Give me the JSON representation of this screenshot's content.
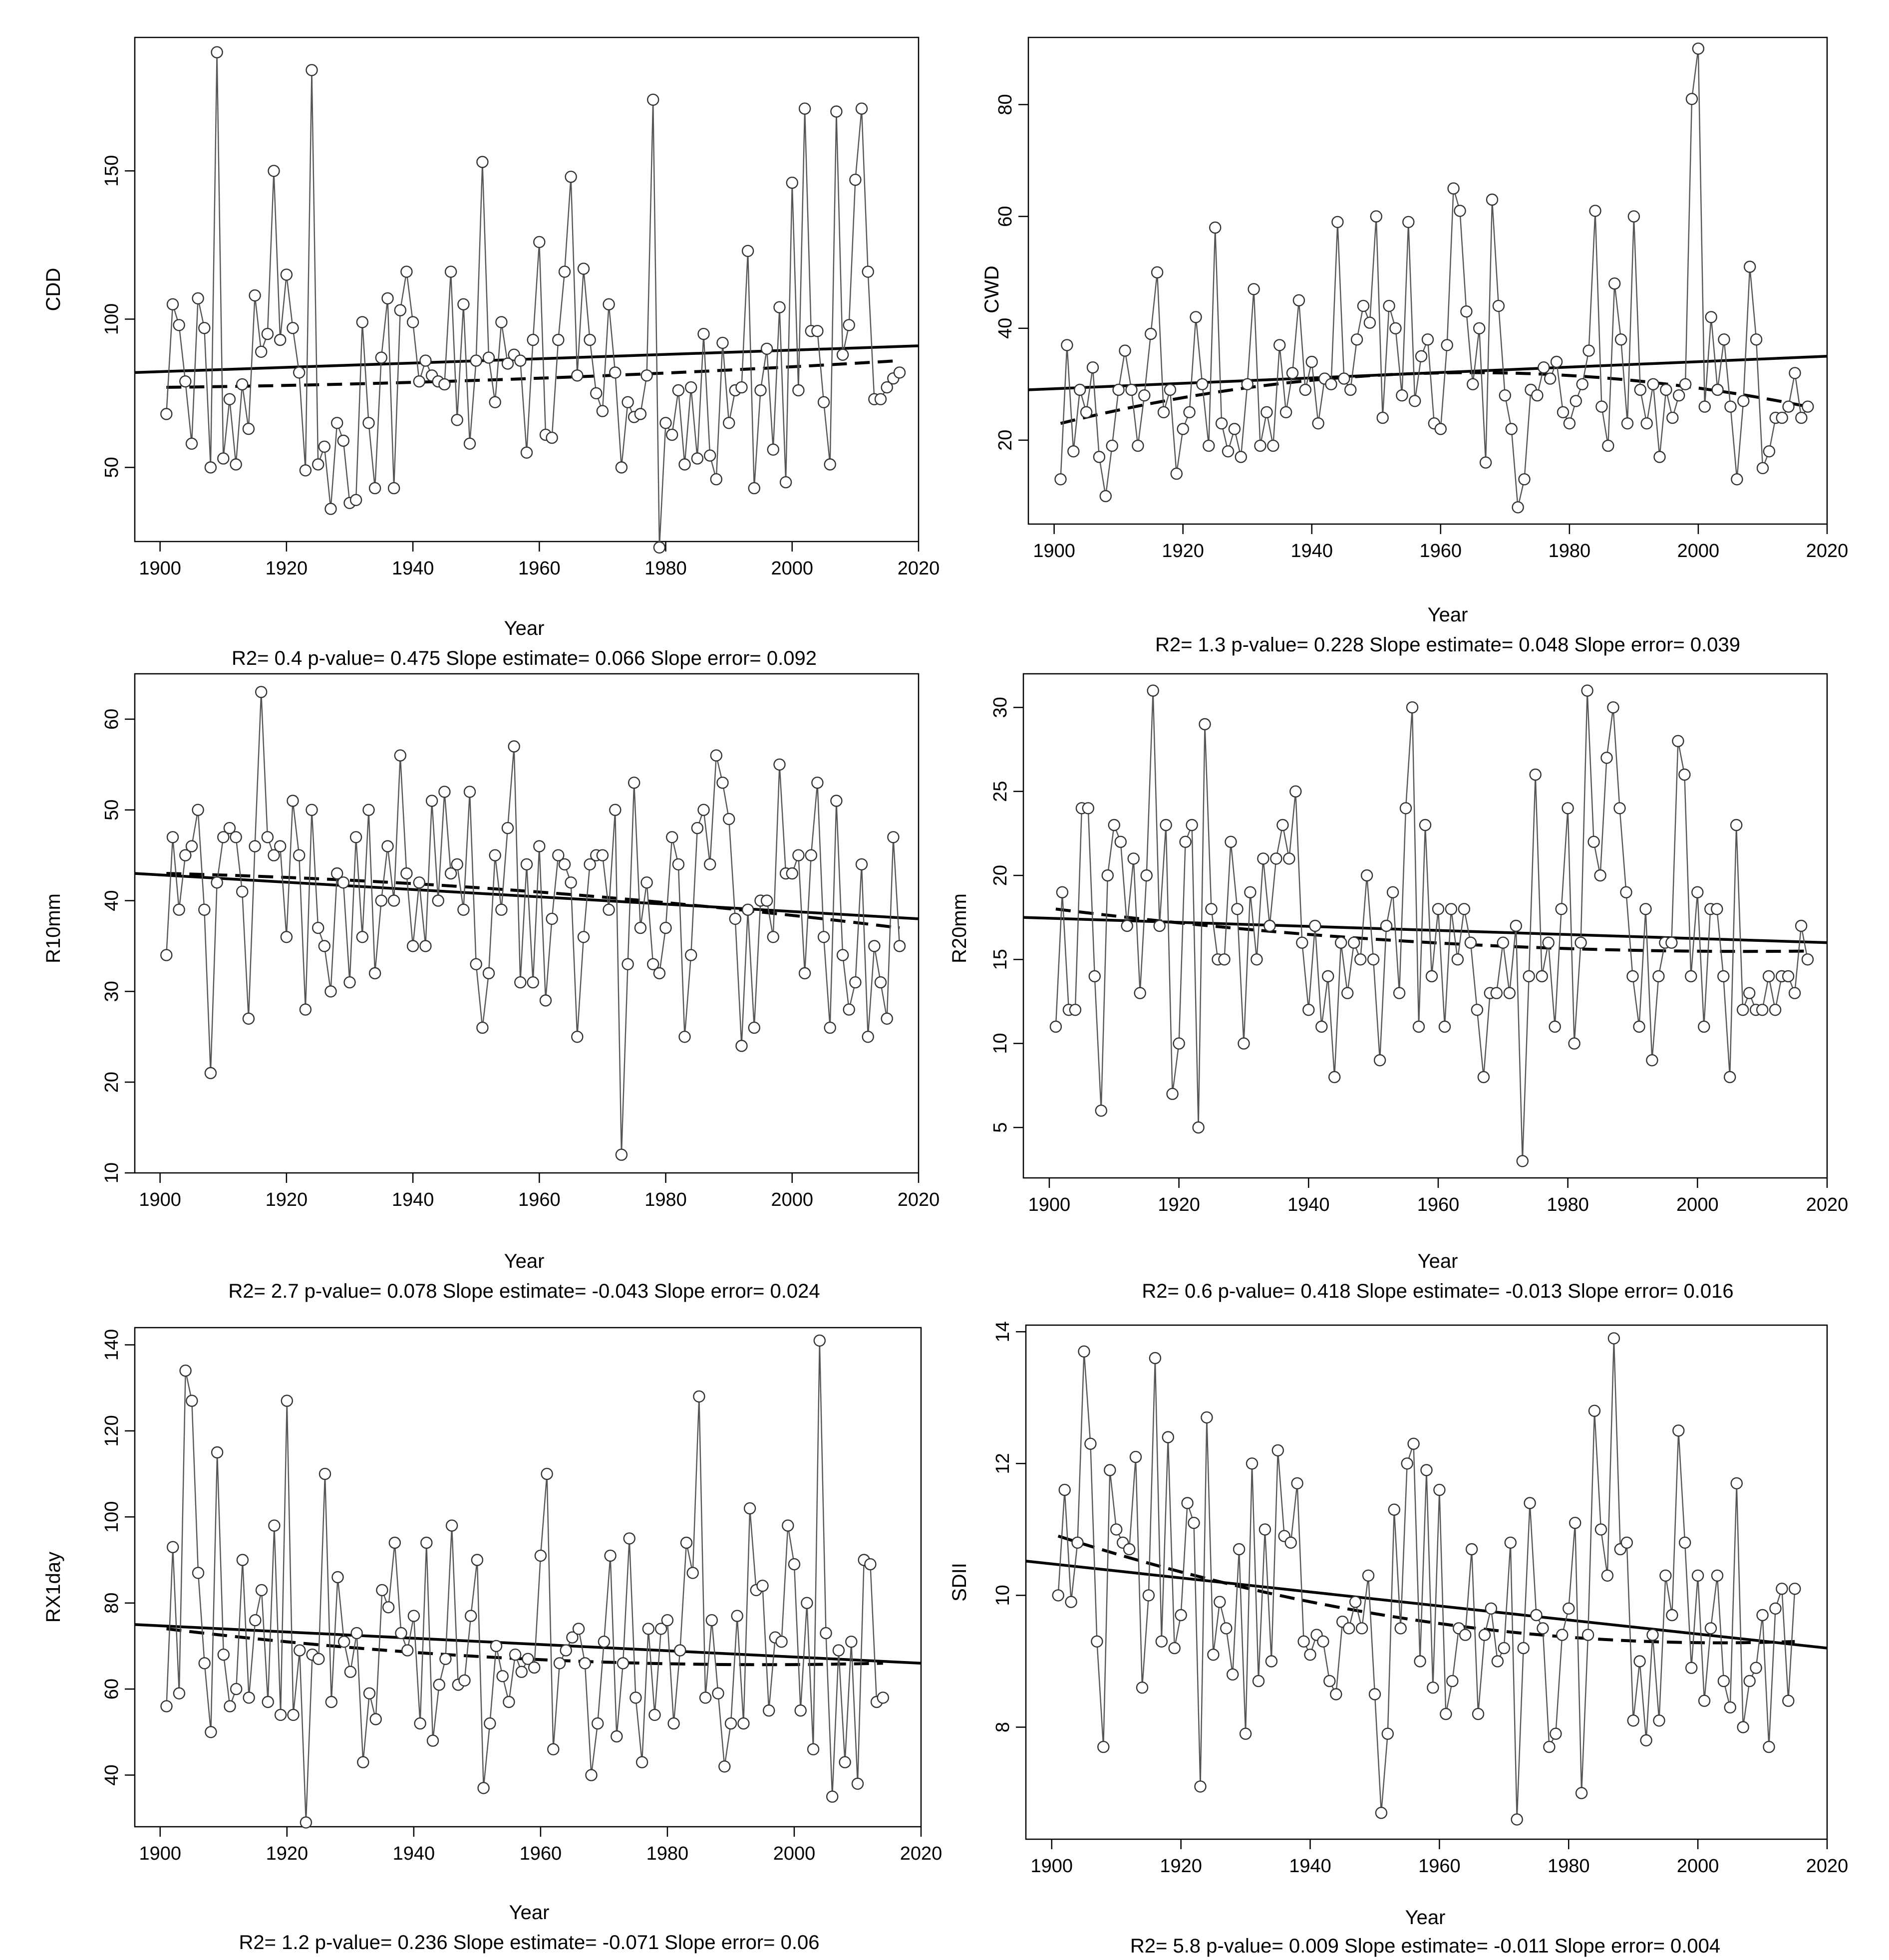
{
  "figure": {
    "background": "#ffffff",
    "line_color": "#000000",
    "series_line_color": "#555555",
    "point_color": "#333333"
  },
  "chart_data": [
    {
      "type": "line",
      "ylabel": "CDD",
      "xlabel": "Year",
      "xlim": [
        1896,
        2020
      ],
      "ylim": [
        25,
        195
      ],
      "xticks": [
        1900,
        1920,
        1940,
        1960,
        1980,
        2000,
        2020
      ],
      "yticks": [
        50,
        100,
        150
      ],
      "x_start": 1901,
      "values": [
        68,
        105,
        98,
        79,
        58,
        107,
        97,
        50,
        190,
        53,
        73,
        51,
        78,
        63,
        108,
        89,
        95,
        150,
        93,
        115,
        97,
        82,
        49,
        184,
        51,
        57,
        36,
        65,
        59,
        38,
        39,
        99,
        65,
        43,
        87,
        107,
        43,
        103,
        116,
        99,
        79,
        86,
        81,
        79,
        78,
        116,
        66,
        105,
        58,
        86,
        153,
        87,
        72,
        99,
        85,
        88,
        86,
        55,
        93,
        126,
        61,
        60,
        93,
        116,
        148,
        81,
        117,
        93,
        75,
        69,
        105,
        82,
        50,
        72,
        67,
        68,
        81,
        174,
        23,
        65,
        61,
        76,
        51,
        77,
        53,
        95,
        54,
        46,
        92,
        65,
        76,
        77,
        123,
        43,
        76,
        90,
        56,
        104,
        45,
        146,
        76,
        171,
        96,
        96,
        72,
        51,
        170,
        88,
        98,
        147,
        171,
        116,
        73,
        73,
        77,
        80,
        82
      ],
      "trend_start": 82,
      "trend_end": 91,
      "lowess_start": 77,
      "lowess_mid": 80,
      "lowess_end": 86,
      "stats": {
        "r2": "0.4",
        "p_value": "0.475",
        "slope_estimate": "0.066",
        "slope_error": "0.092"
      }
    },
    {
      "type": "line",
      "ylabel": "CWD",
      "xlabel": "Year",
      "xlim": [
        1896,
        2020
      ],
      "ylim": [
        5,
        92
      ],
      "xticks": [
        1900,
        1920,
        1940,
        1960,
        1980,
        2000,
        2020
      ],
      "yticks": [
        20,
        40,
        60,
        80
      ],
      "x_start": 1901,
      "values": [
        13,
        37,
        18,
        29,
        25,
        33,
        17,
        10,
        19,
        29,
        36,
        29,
        19,
        28,
        39,
        50,
        25,
        29,
        14,
        22,
        25,
        42,
        30,
        19,
        58,
        23,
        18,
        22,
        17,
        30,
        47,
        19,
        25,
        19,
        37,
        25,
        32,
        45,
        29,
        34,
        23,
        31,
        30,
        59,
        31,
        29,
        38,
        44,
        41,
        60,
        24,
        44,
        40,
        28,
        59,
        27,
        35,
        38,
        23,
        22,
        37,
        65,
        61,
        43,
        30,
        40,
        16,
        63,
        44,
        28,
        22,
        8,
        13,
        29,
        28,
        33,
        31,
        34,
        25,
        23,
        27,
        30,
        36,
        61,
        26,
        19,
        48,
        38,
        23,
        60,
        29,
        23,
        30,
        17,
        29,
        24,
        28,
        30,
        81,
        90,
        26,
        42,
        29,
        38,
        26,
        13,
        27,
        51,
        38,
        15,
        18,
        24,
        24,
        26,
        32,
        24,
        26
      ],
      "trend_start": 29,
      "trend_end": 35,
      "lowess_start": 23,
      "lowess_mid": 32,
      "lowess_end": 26,
      "stats": {
        "r2": "1.3",
        "p_value": "0.228",
        "slope_estimate": "0.048",
        "slope_error": "0.039"
      }
    },
    {
      "type": "line",
      "ylabel": "R10mm",
      "xlabel": "Year",
      "xlim": [
        1896,
        2020
      ],
      "ylim": [
        10,
        65
      ],
      "xticks": [
        1900,
        1920,
        1940,
        1960,
        1980,
        2000,
        2020
      ],
      "yticks": [
        10,
        20,
        30,
        40,
        50,
        60
      ],
      "x_start": 1901,
      "values": [
        34,
        47,
        39,
        45,
        46,
        50,
        39,
        21,
        42,
        47,
        48,
        47,
        41,
        27,
        46,
        63,
        47,
        45,
        46,
        36,
        51,
        45,
        28,
        50,
        37,
        35,
        30,
        43,
        42,
        31,
        47,
        36,
        50,
        32,
        40,
        46,
        40,
        56,
        43,
        35,
        42,
        35,
        51,
        40,
        52,
        43,
        44,
        39,
        52,
        33,
        26,
        32,
        45,
        39,
        48,
        57,
        31,
        44,
        31,
        46,
        29,
        38,
        45,
        44,
        42,
        25,
        36,
        44,
        45,
        45,
        39,
        50,
        12,
        33,
        53,
        37,
        42,
        33,
        32,
        37,
        47,
        44,
        25,
        34,
        48,
        50,
        44,
        56,
        53,
        49,
        38,
        24,
        39,
        26,
        40,
        40,
        36,
        55,
        43,
        43,
        45,
        32,
        45,
        53,
        36,
        26,
        51,
        34,
        28,
        31,
        44,
        25,
        35,
        31,
        27,
        47,
        35
      ],
      "trend_start": 43,
      "trend_end": 38,
      "lowess_start": 43,
      "lowess_mid": 41,
      "lowess_end": 37,
      "stats": {
        "r2": "2.7",
        "p_value": "0.078",
        "slope_estimate": "-0.043",
        "slope_error": "0.024"
      }
    },
    {
      "type": "line",
      "ylabel": "R20mm",
      "xlabel": "Year",
      "xlim": [
        1896,
        2020
      ],
      "ylim": [
        2,
        32
      ],
      "xticks": [
        1900,
        1920,
        1940,
        1960,
        1980,
        2000,
        2020
      ],
      "yticks": [
        5,
        10,
        15,
        20,
        25,
        30
      ],
      "x_start": 1901,
      "values": [
        11,
        19,
        12,
        12,
        24,
        24,
        14,
        6,
        20,
        23,
        22,
        17,
        21,
        13,
        20,
        31,
        17,
        23,
        7,
        10,
        22,
        23,
        5,
        29,
        18,
        15,
        15,
        22,
        18,
        10,
        19,
        15,
        21,
        17,
        21,
        23,
        21,
        25,
        16,
        12,
        17,
        11,
        14,
        8,
        16,
        13,
        16,
        15,
        20,
        15,
        9,
        17,
        19,
        13,
        24,
        30,
        11,
        23,
        14,
        18,
        11,
        18,
        15,
        18,
        16,
        12,
        8,
        13,
        13,
        16,
        13,
        17,
        3,
        14,
        26,
        14,
        16,
        11,
        18,
        24,
        10,
        16,
        31,
        22,
        20,
        27,
        30,
        24,
        19,
        14,
        11,
        18,
        9,
        14,
        16,
        16,
        28,
        26,
        14,
        19,
        11,
        18,
        18,
        14,
        8,
        23,
        12,
        13,
        12,
        12,
        14,
        12,
        14,
        14,
        13,
        17,
        15
      ],
      "trend_start": 17.5,
      "trend_end": 16,
      "lowess_start": 18,
      "lowess_mid": 16,
      "lowess_end": 15.5,
      "stats": {
        "r2": "0.6",
        "p_value": "0.418",
        "slope_estimate": "-0.013",
        "slope_error": "0.016"
      }
    },
    {
      "type": "line",
      "ylabel": "RX1day",
      "xlabel": "Year",
      "xlim": [
        1896,
        2020
      ],
      "ylim": [
        28,
        144
      ],
      "xticks": [
        1900,
        1920,
        1940,
        1960,
        1980,
        2000,
        2020
      ],
      "yticks": [
        40,
        60,
        80,
        100,
        120,
        140
      ],
      "x_start": 1901,
      "values": [
        56,
        93,
        59,
        134,
        127,
        87,
        66,
        50,
        115,
        68,
        56,
        60,
        90,
        58,
        76,
        83,
        57,
        98,
        54,
        127,
        54,
        69,
        29,
        68,
        67,
        110,
        57,
        86,
        71,
        64,
        73,
        43,
        59,
        53,
        83,
        79,
        94,
        73,
        69,
        77,
        52,
        94,
        48,
        61,
        67,
        98,
        61,
        62,
        77,
        90,
        37,
        52,
        70,
        63,
        57,
        68,
        64,
        67,
        65,
        91,
        110,
        46,
        66,
        69,
        72,
        74,
        66,
        40,
        52,
        71,
        91,
        49,
        66,
        95,
        58,
        43,
        74,
        54,
        74,
        76,
        52,
        69,
        94,
        87,
        128,
        58,
        76,
        59,
        42,
        52,
        77,
        52,
        102,
        83,
        84,
        55,
        72,
        71,
        98,
        89,
        55,
        80,
        46,
        141,
        73,
        35,
        69,
        43,
        71,
        38,
        90,
        89,
        57,
        58
      ],
      "trend_start": 75,
      "trend_end": 66,
      "lowess_start": 74,
      "lowess_mid": 67,
      "lowess_end": 66,
      "stats": {
        "r2": "1.2",
        "p_value": "0.236",
        "slope_estimate": "-0.071",
        "slope_error": "0.06"
      }
    },
    {
      "type": "line",
      "ylabel": "SDII",
      "xlabel": "Year",
      "xlim": [
        1896,
        2020
      ],
      "ylim": [
        6.3,
        14.1
      ],
      "xticks": [
        1900,
        1920,
        1940,
        1960,
        1980,
        2000,
        2020
      ],
      "yticks": [
        8,
        10,
        12,
        14
      ],
      "x_start": 1901,
      "values": [
        10.0,
        11.6,
        9.9,
        10.8,
        13.7,
        12.3,
        9.3,
        7.7,
        11.9,
        11.0,
        10.8,
        10.7,
        12.1,
        8.6,
        10.0,
        13.6,
        9.3,
        12.4,
        9.2,
        9.7,
        11.4,
        11.1,
        7.1,
        12.7,
        9.1,
        9.9,
        9.5,
        8.8,
        10.7,
        7.9,
        12.0,
        8.7,
        11.0,
        9.0,
        12.2,
        10.9,
        10.8,
        11.7,
        9.3,
        9.1,
        9.4,
        9.3,
        8.7,
        8.5,
        9.6,
        9.5,
        9.9,
        9.5,
        10.3,
        8.5,
        6.7,
        7.9,
        11.3,
        9.5,
        12.0,
        12.3,
        9.0,
        11.9,
        8.6,
        11.6,
        8.2,
        8.7,
        9.5,
        9.4,
        10.7,
        8.2,
        9.4,
        9.8,
        9.0,
        9.2,
        10.8,
        6.6,
        9.2,
        11.4,
        9.7,
        9.5,
        7.7,
        7.9,
        9.4,
        9.8,
        11.1,
        7.0,
        9.4,
        12.8,
        11.0,
        10.3,
        13.9,
        10.7,
        10.8,
        8.1,
        9.0,
        7.8,
        9.4,
        8.1,
        10.3,
        9.7,
        12.5,
        10.8,
        8.9,
        10.3,
        8.4,
        9.5,
        10.3,
        8.7,
        8.3,
        11.7,
        8.0,
        8.7,
        8.9,
        9.7,
        7.7,
        9.8,
        10.1,
        8.4,
        10.1
      ],
      "trend_start": 10.52,
      "trend_end": 9.2,
      "lowess_start": 10.9,
      "lowess_mid": 9.6,
      "lowess_end": 9.3,
      "stats": {
        "r2": "5.8",
        "p_value": "0.009",
        "slope_estimate": "-0.011",
        "slope_error": "0.004"
      }
    }
  ]
}
